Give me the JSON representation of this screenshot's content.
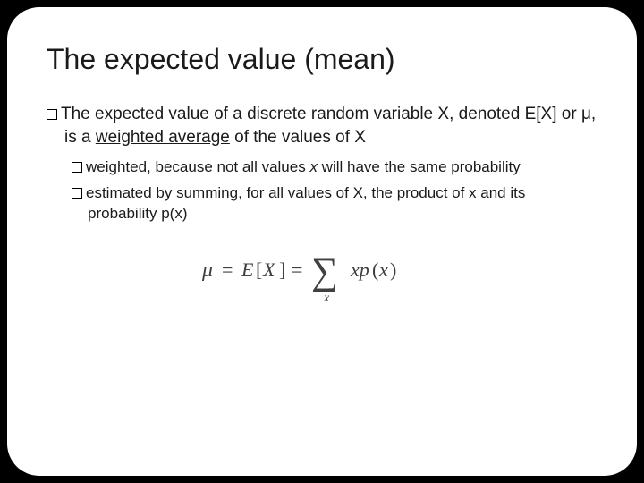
{
  "title": "The expected value (mean)",
  "mainBullet": {
    "prefix": "The expected value of a discrete random variable X, denoted E[X] or μ, is a ",
    "underlined": "weighted average",
    "suffix": " of the values of X"
  },
  "subBullets": [
    {
      "prefix": "weighted, because not all values ",
      "italic": "x",
      "suffix": " will have the same probability"
    },
    {
      "prefix": "estimated by summing, for all values of X, the product of x and its probability p(x)",
      "italic": "",
      "suffix": ""
    }
  ],
  "formula": {
    "display": "μ = E[X] = Σ x p(x)",
    "sumSubscript": "x"
  },
  "colors": {
    "background": "#000000",
    "slide": "#ffffff",
    "text": "#1a1a1a"
  }
}
